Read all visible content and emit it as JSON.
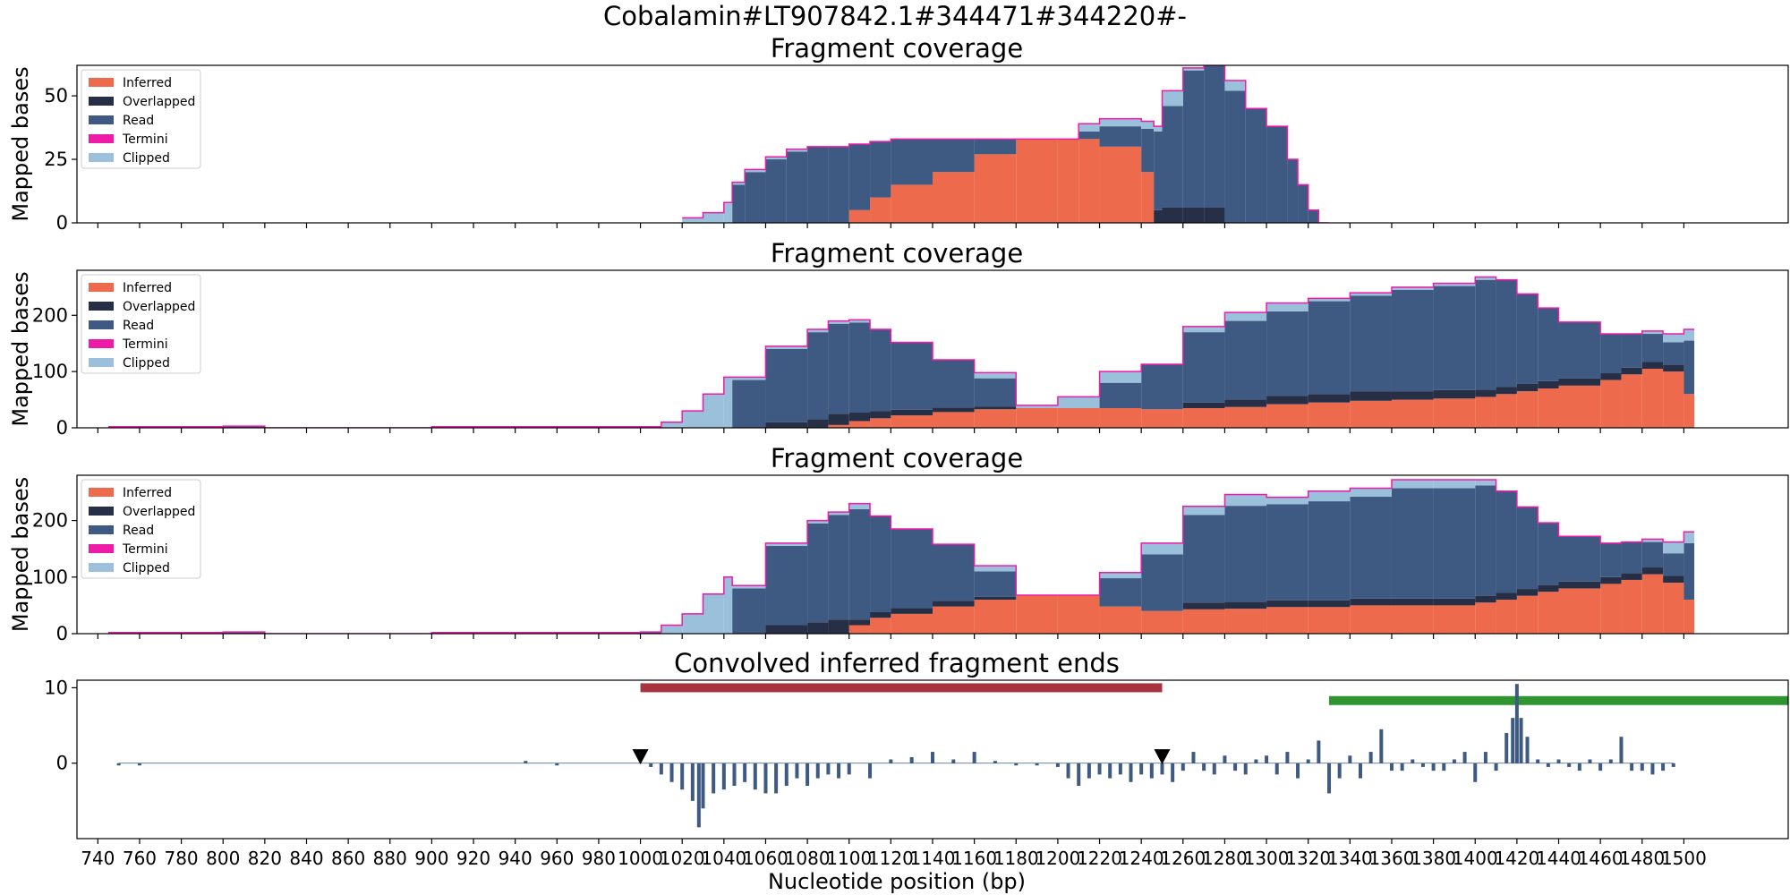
{
  "figure": {
    "suptitle": "Cobalamin#LT907842.1#344471#344220#-"
  },
  "colors": {
    "inferred": "#ee6a4d",
    "overlapped": "#262f46",
    "read": "#3e5a82",
    "termini": "#ee1ba7",
    "clipped": "#9bc0dc",
    "region_red": "#a6333e",
    "region_green": "#2e9530",
    "conv_bars": "#3e5a82"
  },
  "legend": [
    "Inferred",
    "Overlapped",
    "Read",
    "Termini",
    "Clipped"
  ],
  "chart_data": [
    {
      "type": "area",
      "subtype": "stacked-step",
      "title": "Fragment coverage",
      "ylabel": "Mapped bases",
      "xlim": [
        730,
        1550
      ],
      "ylim": [
        0,
        62
      ],
      "yticks": [
        0,
        25,
        50
      ],
      "legend_position": "upper-left",
      "x": [
        1020,
        1030,
        1040,
        1044,
        1050,
        1060,
        1070,
        1080,
        1090,
        1100,
        1110,
        1120,
        1140,
        1160,
        1180,
        1200,
        1210,
        1220,
        1240,
        1246,
        1250,
        1260,
        1270,
        1280,
        1290,
        1300,
        1310,
        1315,
        1320,
        1325
      ],
      "series": [
        {
          "name": "Inferred",
          "values": [
            0,
            0,
            0,
            0,
            0,
            0,
            0,
            0,
            0,
            5,
            10,
            15,
            20,
            27,
            33,
            33,
            33,
            30,
            20,
            0,
            0,
            0,
            0,
            0,
            0,
            0,
            0,
            0,
            0,
            0
          ]
        },
        {
          "name": "Overlapped",
          "values": [
            0,
            0,
            0,
            0,
            0,
            0,
            0,
            0,
            0,
            0,
            0,
            0,
            0,
            0,
            0,
            0,
            0,
            0,
            0,
            5,
            6,
            6,
            6,
            0,
            0,
            0,
            0,
            0,
            0,
            0
          ]
        },
        {
          "name": "Read",
          "values": [
            0,
            0,
            0,
            15,
            20,
            25,
            28,
            30,
            30,
            26,
            22,
            18,
            13,
            6,
            0,
            0,
            3,
            8,
            17,
            31,
            40,
            54,
            56,
            52,
            45,
            38,
            25,
            15,
            5,
            0
          ]
        },
        {
          "name": "Termini",
          "values": [
            0,
            0,
            0,
            0,
            0,
            0,
            0,
            0,
            0,
            0,
            0,
            0,
            0,
            0,
            0,
            0,
            0,
            0,
            0,
            0,
            0,
            0,
            0,
            0,
            0,
            0,
            0,
            0,
            0,
            0
          ]
        },
        {
          "name": "Clipped",
          "values": [
            2,
            4,
            8,
            1,
            1,
            1,
            1,
            0,
            0,
            0,
            0,
            0,
            0,
            0,
            0,
            0,
            3,
            3,
            3,
            2,
            6,
            1,
            0,
            4,
            0,
            0,
            0,
            0,
            0,
            0
          ]
        }
      ]
    },
    {
      "type": "area",
      "subtype": "stacked-step",
      "title": "Fragment coverage",
      "ylabel": "Mapped bases",
      "xlim": [
        730,
        1550
      ],
      "ylim": [
        0,
        280
      ],
      "yticks": [
        0,
        100,
        200
      ],
      "legend_position": "upper-left",
      "x": [
        745,
        800,
        820,
        900,
        980,
        1000,
        1010,
        1020,
        1030,
        1040,
        1044,
        1060,
        1080,
        1090,
        1100,
        1110,
        1120,
        1140,
        1160,
        1180,
        1200,
        1220,
        1240,
        1260,
        1280,
        1300,
        1320,
        1340,
        1360,
        1380,
        1400,
        1410,
        1420,
        1430,
        1440,
        1460,
        1470,
        1480,
        1490,
        1500
      ],
      "series": [
        {
          "name": "Inferred",
          "values": [
            0,
            0,
            0,
            0,
            0,
            0,
            0,
            0,
            0,
            0,
            0,
            0,
            0,
            5,
            12,
            17,
            22,
            28,
            33,
            35,
            35,
            35,
            33,
            35,
            37,
            42,
            45,
            48,
            50,
            52,
            55,
            60,
            65,
            70,
            75,
            85,
            95,
            105,
            100,
            60
          ]
        },
        {
          "name": "Overlapped",
          "values": [
            0,
            0,
            0,
            0,
            0,
            0,
            0,
            0,
            0,
            0,
            0,
            10,
            15,
            20,
            15,
            13,
            10,
            8,
            5,
            0,
            0,
            0,
            0,
            10,
            13,
            15,
            15,
            17,
            15,
            15,
            13,
            13,
            13,
            13,
            13,
            12,
            12,
            12,
            12,
            0
          ]
        },
        {
          "name": "Read",
          "values": [
            2,
            3,
            0,
            2,
            2,
            0,
            0,
            0,
            0,
            0,
            85,
            130,
            155,
            160,
            160,
            145,
            120,
            85,
            50,
            0,
            0,
            45,
            80,
            125,
            140,
            150,
            165,
            170,
            180,
            185,
            195,
            190,
            160,
            130,
            100,
            70,
            60,
            50,
            40,
            95
          ]
        },
        {
          "name": "Termini",
          "values": [
            0,
            0,
            0,
            0,
            0,
            0,
            0,
            0,
            0,
            0,
            0,
            0,
            0,
            0,
            0,
            0,
            0,
            0,
            0,
            0,
            0,
            0,
            0,
            0,
            0,
            0,
            0,
            0,
            0,
            0,
            0,
            0,
            0,
            0,
            0,
            0,
            0,
            0,
            0,
            0
          ]
        },
        {
          "name": "Clipped",
          "values": [
            0,
            0,
            0,
            0,
            0,
            2,
            10,
            30,
            60,
            90,
            5,
            5,
            5,
            5,
            5,
            0,
            0,
            0,
            10,
            5,
            20,
            20,
            0,
            10,
            15,
            15,
            5,
            5,
            5,
            5,
            5,
            0,
            0,
            0,
            0,
            0,
            0,
            5,
            15,
            20
          ]
        }
      ]
    },
    {
      "type": "area",
      "subtype": "stacked-step",
      "title": "Fragment coverage",
      "ylabel": "Mapped bases",
      "xlim": [
        730,
        1550
      ],
      "ylim": [
        0,
        280
      ],
      "yticks": [
        0,
        100,
        200
      ],
      "legend_position": "upper-left",
      "x": [
        745,
        800,
        820,
        900,
        980,
        1000,
        1010,
        1020,
        1030,
        1040,
        1044,
        1060,
        1080,
        1090,
        1100,
        1110,
        1120,
        1140,
        1160,
        1180,
        1200,
        1220,
        1240,
        1260,
        1280,
        1300,
        1320,
        1340,
        1360,
        1380,
        1400,
        1410,
        1420,
        1430,
        1440,
        1460,
        1470,
        1480,
        1490,
        1500
      ],
      "series": [
        {
          "name": "Inferred",
          "values": [
            0,
            0,
            0,
            0,
            0,
            0,
            0,
            0,
            0,
            0,
            0,
            0,
            0,
            0,
            15,
            28,
            35,
            48,
            60,
            68,
            68,
            48,
            40,
            43,
            44,
            47,
            47,
            50,
            50,
            50,
            55,
            60,
            67,
            74,
            80,
            88,
            95,
            105,
            90,
            60
          ]
        },
        {
          "name": "Overlapped",
          "values": [
            0,
            0,
            0,
            0,
            0,
            0,
            0,
            0,
            0,
            0,
            0,
            15,
            20,
            25,
            10,
            10,
            10,
            10,
            5,
            0,
            0,
            0,
            0,
            12,
            12,
            12,
            12,
            12,
            12,
            12,
            12,
            12,
            12,
            12,
            12,
            12,
            12,
            12,
            12,
            0
          ]
        },
        {
          "name": "Read",
          "values": [
            2,
            3,
            0,
            2,
            2,
            3,
            0,
            0,
            0,
            0,
            80,
            140,
            175,
            185,
            195,
            170,
            140,
            100,
            45,
            0,
            0,
            50,
            100,
            155,
            170,
            170,
            175,
            180,
            195,
            195,
            195,
            180,
            145,
            110,
            80,
            60,
            55,
            45,
            40,
            100
          ]
        },
        {
          "name": "Termini",
          "values": [
            0,
            0,
            0,
            0,
            0,
            0,
            0,
            0,
            0,
            0,
            0,
            0,
            0,
            0,
            0,
            0,
            0,
            0,
            0,
            0,
            0,
            0,
            0,
            0,
            0,
            0,
            0,
            0,
            0,
            0,
            0,
            0,
            0,
            0,
            0,
            0,
            0,
            0,
            0,
            0
          ]
        },
        {
          "name": "Clipped",
          "values": [
            0,
            0,
            0,
            0,
            0,
            0,
            15,
            35,
            70,
            100,
            5,
            5,
            5,
            5,
            10,
            0,
            0,
            0,
            10,
            0,
            0,
            10,
            20,
            15,
            20,
            12,
            18,
            15,
            15,
            15,
            10,
            0,
            0,
            0,
            0,
            0,
            0,
            5,
            20,
            20
          ]
        }
      ]
    },
    {
      "type": "bar",
      "title": "Convolved inferred fragment ends",
      "xlabel": "Nucleotide position (bp)",
      "xlim": [
        730,
        1550
      ],
      "ylim": [
        -10,
        11
      ],
      "yticks": [
        0,
        10
      ],
      "xticks": [
        740,
        760,
        780,
        800,
        820,
        840,
        860,
        880,
        900,
        920,
        940,
        960,
        980,
        1000,
        1020,
        1040,
        1060,
        1080,
        1100,
        1120,
        1140,
        1160,
        1180,
        1200,
        1220,
        1240,
        1260,
        1280,
        1300,
        1320,
        1340,
        1360,
        1380,
        1400,
        1420,
        1440,
        1460,
        1480,
        1500
      ],
      "x": [
        750,
        760,
        945,
        960,
        1005,
        1010,
        1015,
        1020,
        1025,
        1028,
        1030,
        1035,
        1040,
        1045,
        1050,
        1055,
        1060,
        1065,
        1070,
        1075,
        1080,
        1085,
        1090,
        1095,
        1100,
        1110,
        1120,
        1130,
        1140,
        1150,
        1160,
        1170,
        1180,
        1190,
        1200,
        1205,
        1210,
        1215,
        1220,
        1225,
        1230,
        1235,
        1240,
        1245,
        1250,
        1255,
        1260,
        1265,
        1270,
        1275,
        1280,
        1285,
        1290,
        1295,
        1300,
        1305,
        1310,
        1315,
        1320,
        1325,
        1330,
        1335,
        1340,
        1345,
        1350,
        1355,
        1360,
        1365,
        1370,
        1375,
        1380,
        1385,
        1390,
        1395,
        1400,
        1405,
        1410,
        1415,
        1418,
        1420,
        1422,
        1425,
        1430,
        1435,
        1440,
        1445,
        1450,
        1455,
        1460,
        1465,
        1470,
        1475,
        1480,
        1485,
        1490,
        1495
      ],
      "values": [
        -0.3,
        -0.3,
        0.3,
        -0.3,
        -0.5,
        -1.5,
        -2.5,
        -3.5,
        -5,
        -8.5,
        -6,
        -4,
        -3.5,
        -3,
        -2.5,
        -3.5,
        -4,
        -4,
        -3,
        -2,
        -3,
        -2,
        -1.5,
        -2,
        -1.5,
        -2,
        0.5,
        0.8,
        1.5,
        0.5,
        1.5,
        0.3,
        -0.3,
        -0.3,
        -0.5,
        -2,
        -3,
        -2,
        -1.5,
        -2,
        -1.5,
        -2.5,
        -1.5,
        -2,
        -1.5,
        -2.5,
        -1,
        1.5,
        -1,
        -1.5,
        1,
        -1,
        -1.5,
        0.5,
        1,
        -1.5,
        1.5,
        -2,
        0.5,
        3,
        -4,
        -2,
        1,
        -2,
        1.5,
        4.5,
        -1,
        -1,
        0.5,
        -0.5,
        -1,
        -1,
        0.5,
        1.5,
        -2.5,
        1.5,
        -1,
        4,
        6,
        10.5,
        6,
        3.5,
        0.5,
        -0.5,
        0.5,
        -0.5,
        -1,
        0.5,
        -1,
        0.5,
        3.5,
        -1,
        -1,
        -1.5,
        -1,
        -0.5
      ],
      "regions": [
        {
          "start": 1000,
          "end": 1250,
          "level": 10,
          "color": "region_red"
        },
        {
          "start": 1330,
          "end": 1550,
          "level": 8.3,
          "color": "region_green"
        }
      ],
      "markers": [
        {
          "x": 1000,
          "y": 0.9,
          "shape": "triangle-down"
        },
        {
          "x": 1250,
          "y": 0.9,
          "shape": "triangle-down"
        }
      ]
    }
  ]
}
